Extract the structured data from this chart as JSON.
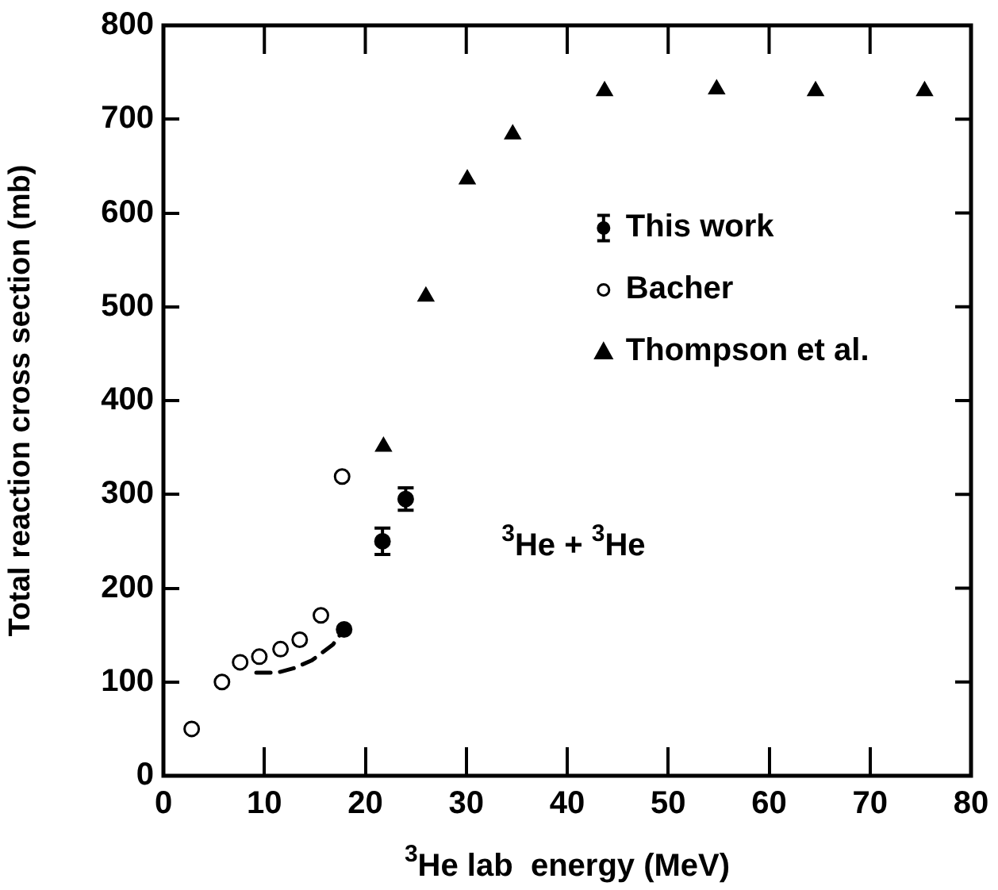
{
  "chart_data": {
    "type": "scatter",
    "xlabel": "$^{3}$He lab  energy (MeV)",
    "ylabel": "Total reaction cross section (mb)",
    "xlim": [
      0,
      80
    ],
    "xticks": [
      0,
      10,
      20,
      30,
      40,
      50,
      60,
      70,
      80
    ],
    "ylim": [
      0,
      800
    ],
    "yticks": [
      0,
      100,
      200,
      300,
      400,
      500,
      600,
      700,
      800
    ],
    "grid": false,
    "legend": "right",
    "annotations": [
      "$^{3}$He + $^{3}$He"
    ],
    "series": [
      {
        "name": "This work",
        "type": "scatter",
        "marker": "circle",
        "color": "#000000",
        "x": [
          21.7,
          24.0
        ],
        "values": [
          250,
          295
        ],
        "errors": [
          14,
          12
        ]
      },
      {
        "name": "Bacher",
        "type": "scatter",
        "marker": "circle",
        "color": "#000000",
        "x": [
          2.8,
          5.8,
          7.6,
          9.5,
          11.6,
          13.5,
          15.6,
          17.7
        ],
        "values": [
          50,
          100,
          121,
          127,
          135,
          145,
          171,
          319
        ]
      },
      {
        "name": "Thompson et al.",
        "type": "scatter",
        "marker": "triangle",
        "color": "#000000",
        "x": [
          21.8,
          26.0,
          30.1,
          34.6,
          43.7,
          54.8,
          64.6,
          75.4
        ],
        "values": [
          351,
          511,
          636,
          684,
          730,
          732,
          730,
          730
        ]
      },
      {
        "type": "line",
        "marker": "none",
        "line_style": "dashed",
        "color": "#000000",
        "x": [
          9.2,
          11.3,
          13.0,
          14.7,
          16.8,
          17.9
        ],
        "values": [
          110,
          110,
          115,
          123,
          140,
          156
        ]
      },
      {
        "type": "scatter",
        "marker": "circle",
        "color": "#000000",
        "x": [
          17.9
        ],
        "values": [
          156
        ]
      }
    ]
  }
}
